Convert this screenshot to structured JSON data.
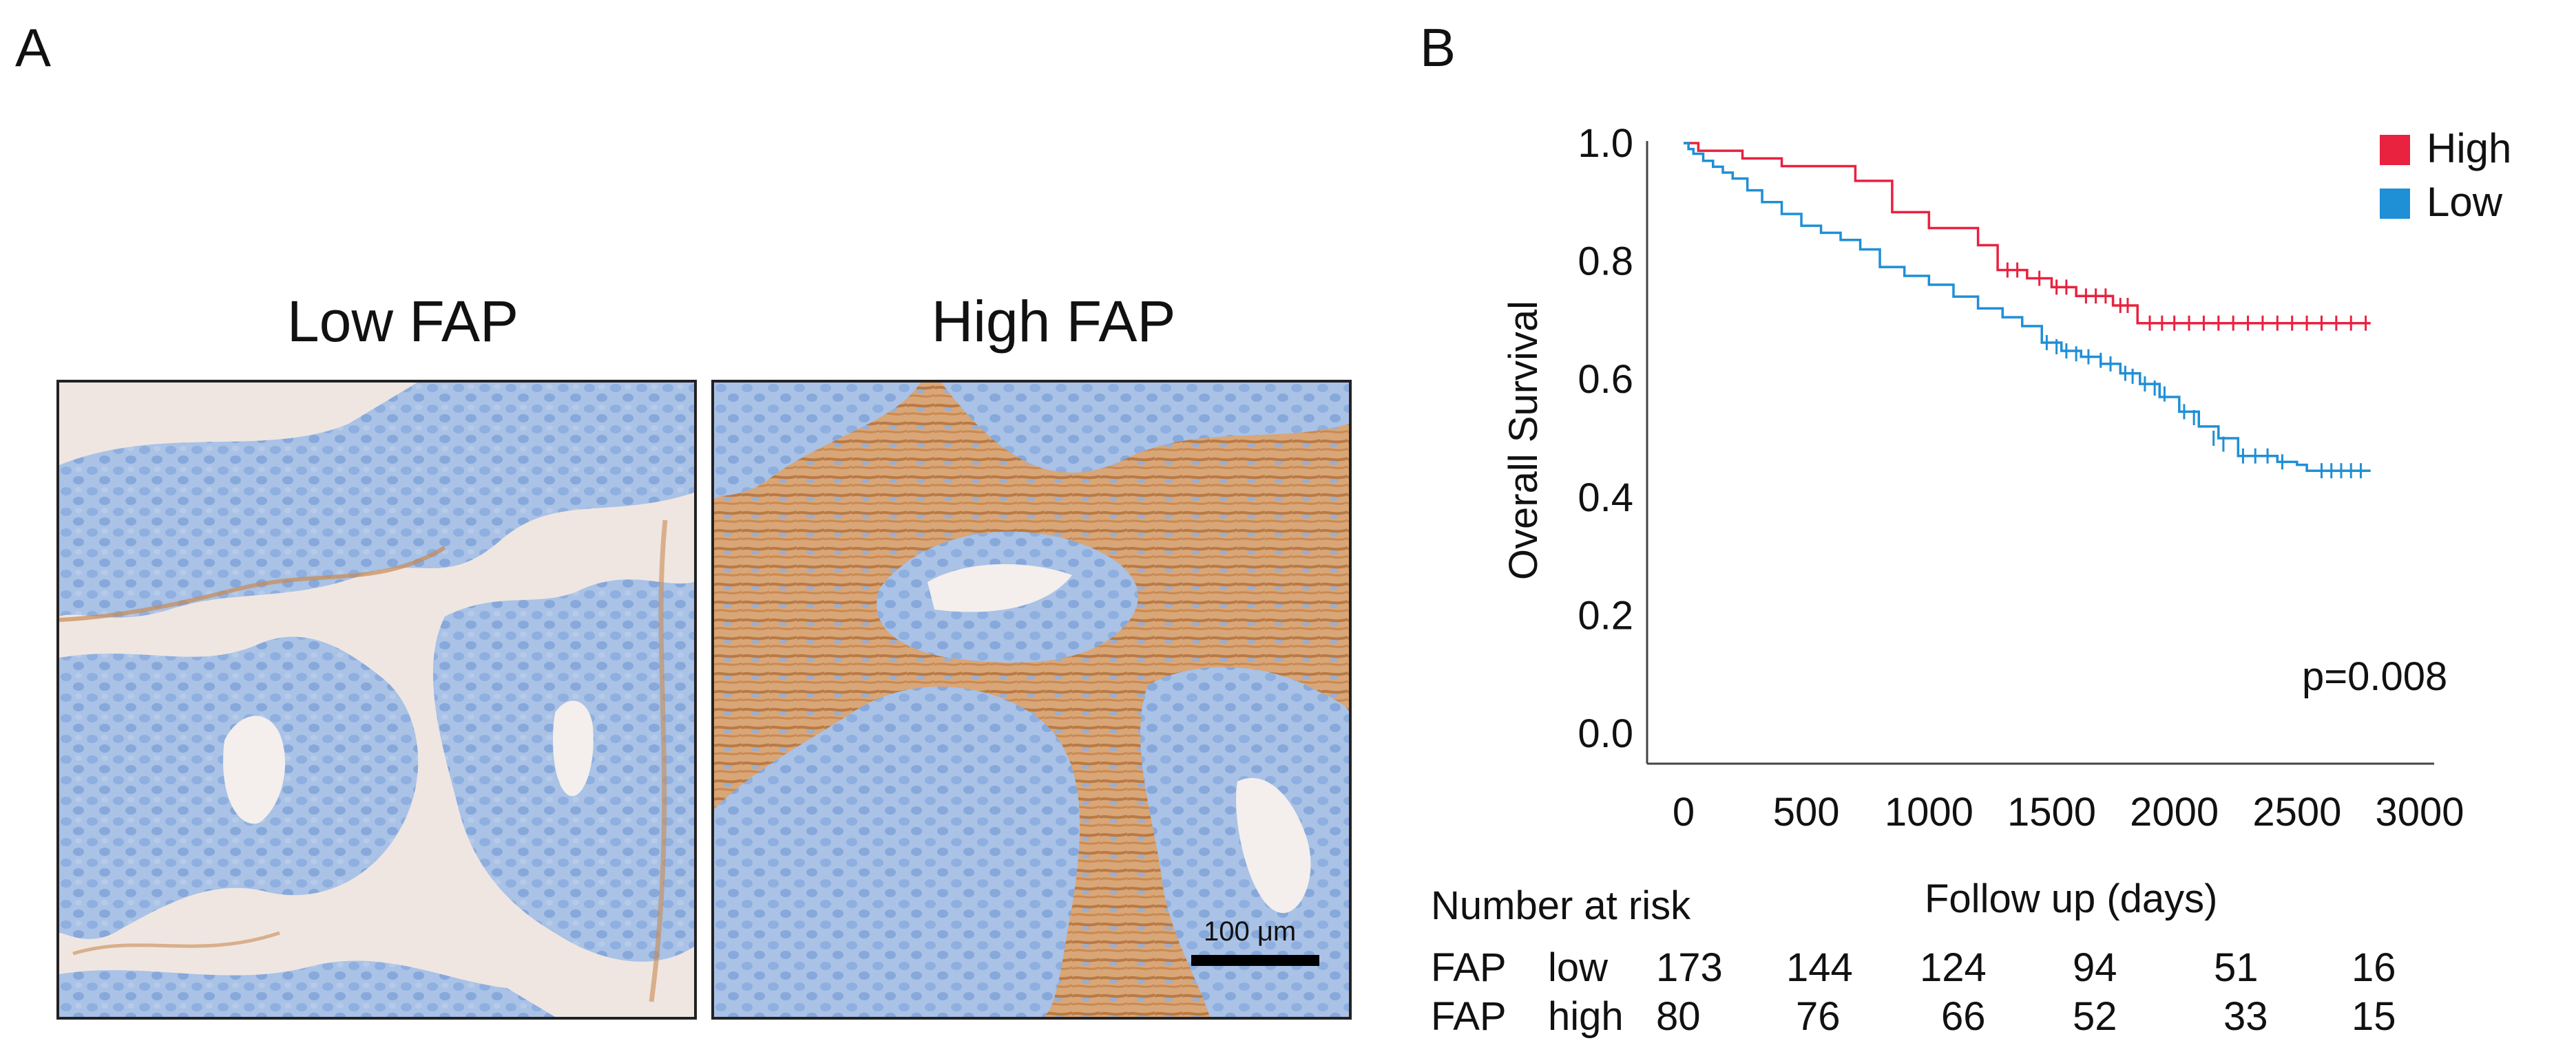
{
  "panel_a": {
    "letter": "A",
    "low_title": "Low FAP",
    "high_title": "High FAP",
    "scale_bar_label": "100 μm",
    "stain_colors": {
      "hematoxylin": "#8fb1dd",
      "fap": "#c98a52",
      "background": "#f3ebe6"
    }
  },
  "panel_b": {
    "letter": "B",
    "pvalue_text": "p=0.008"
  },
  "chart_data": {
    "type": "line",
    "subtype": "kaplan-meier",
    "title": "",
    "xlabel": "Follow up (days)",
    "ylabel": "Overall Survival",
    "xlim": [
      0,
      3000
    ],
    "ylim": [
      0,
      1.0
    ],
    "xticks": [
      0,
      500,
      1000,
      1500,
      2000,
      2500,
      3000
    ],
    "yticks": [
      "0.0",
      "0.2",
      "0.4",
      "0.6",
      "0.8",
      "1.0"
    ],
    "legend_position": "top-right",
    "series": [
      {
        "name": "High",
        "color": "#e8223f",
        "x": [
          0,
          60,
          60,
          240,
          240,
          400,
          400,
          700,
          700,
          850,
          850,
          1000,
          1000,
          1200,
          1200,
          1280,
          1280,
          1400,
          1400,
          1500,
          1500,
          1600,
          1600,
          1750,
          1750,
          1850,
          1850,
          2800
        ],
        "y": [
          1.0,
          1.0,
          0.987,
          0.987,
          0.974,
          0.974,
          0.961,
          0.961,
          0.936,
          0.936,
          0.883,
          0.883,
          0.856,
          0.856,
          0.827,
          0.827,
          0.785,
          0.785,
          0.771,
          0.771,
          0.756,
          0.756,
          0.741,
          0.741,
          0.725,
          0.725,
          0.695,
          0.695
        ],
        "censor_x": [
          1320,
          1360,
          1450,
          1520,
          1560,
          1640,
          1680,
          1720,
          1780,
          1810,
          1900,
          1950,
          2000,
          2060,
          2120,
          2180,
          2240,
          2300,
          2360,
          2420,
          2480,
          2540,
          2600,
          2660,
          2720,
          2780
        ],
        "censor_y": [
          0.785,
          0.785,
          0.771,
          0.756,
          0.756,
          0.741,
          0.741,
          0.741,
          0.725,
          0.725,
          0.695,
          0.695,
          0.695,
          0.695,
          0.695,
          0.695,
          0.695,
          0.695,
          0.695,
          0.695,
          0.695,
          0.695,
          0.695,
          0.695,
          0.695,
          0.695
        ]
      },
      {
        "name": "Low",
        "color": "#1f8fd6",
        "x": [
          0,
          20,
          40,
          80,
          120,
          160,
          200,
          260,
          320,
          400,
          480,
          560,
          640,
          720,
          800,
          900,
          1000,
          1100,
          1200,
          1300,
          1380,
          1460,
          1540,
          1620,
          1700,
          1780,
          1860,
          1940,
          2020,
          2100,
          2180,
          2260,
          2340,
          2420,
          2500,
          2540,
          2800
        ],
        "y": [
          1.0,
          0.99,
          0.982,
          0.97,
          0.96,
          0.95,
          0.94,
          0.92,
          0.9,
          0.88,
          0.86,
          0.848,
          0.836,
          0.82,
          0.79,
          0.775,
          0.76,
          0.74,
          0.72,
          0.705,
          0.69,
          0.662,
          0.648,
          0.638,
          0.626,
          0.61,
          0.592,
          0.57,
          0.545,
          0.52,
          0.5,
          0.47,
          0.47,
          0.46,
          0.455,
          0.445,
          0.445
        ],
        "censor_x": [
          1480,
          1520,
          1560,
          1600,
          1650,
          1700,
          1740,
          1800,
          1830,
          1880,
          1920,
          1960,
          2040,
          2080,
          2160,
          2200,
          2280,
          2330,
          2380,
          2440,
          2600,
          2640,
          2680,
          2720,
          2760
        ],
        "censor_y": [
          0.662,
          0.655,
          0.648,
          0.643,
          0.638,
          0.632,
          0.626,
          0.61,
          0.605,
          0.592,
          0.585,
          0.575,
          0.545,
          0.535,
          0.5,
          0.49,
          0.47,
          0.47,
          0.47,
          0.46,
          0.445,
          0.445,
          0.445,
          0.445,
          0.445
        ]
      }
    ],
    "annotations": [
      "p=0.008"
    ]
  },
  "risk_table": {
    "heading": "Number at risk",
    "rows": [
      {
        "label": "FAP",
        "group": "low",
        "values": [
          "173",
          "144",
          "124",
          "94",
          "51",
          "16"
        ]
      },
      {
        "label": "FAP",
        "group": "high",
        "values": [
          "80",
          "76",
          "66",
          "52",
          "33",
          "15"
        ]
      }
    ]
  }
}
